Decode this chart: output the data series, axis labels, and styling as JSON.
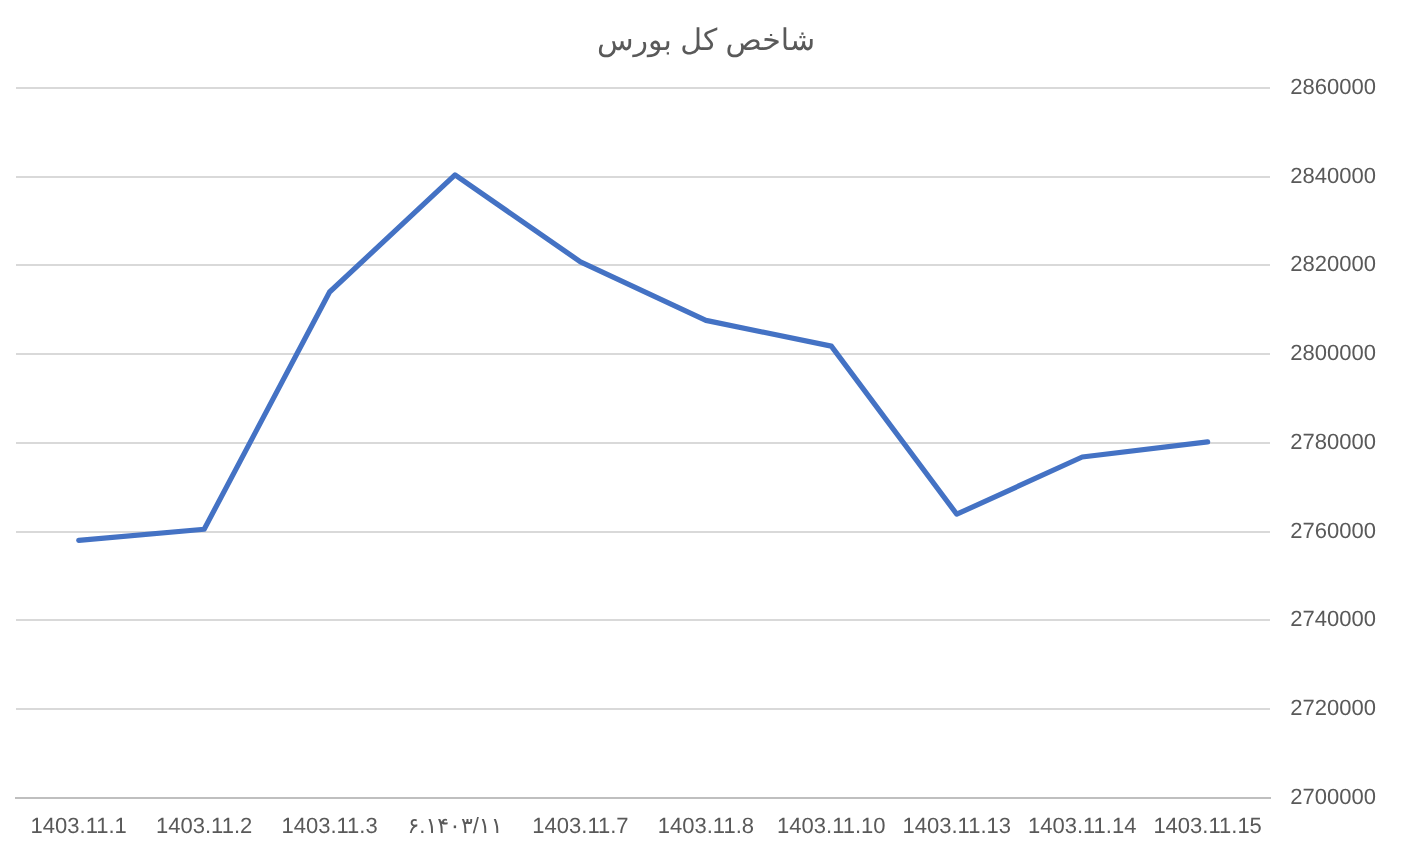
{
  "chart_data": {
    "type": "line",
    "title": "شاخص کل بورس",
    "categories": [
      "1403.11.1",
      "1403.11.2",
      "1403.11.3",
      "۶.۱۴۰۳/۱۱",
      "1403.11.7",
      "1403.11.8",
      "1403.11.10",
      "1403.11.13",
      "1403.11.14",
      "1403.11.15"
    ],
    "values": [
      2758000,
      2760500,
      2814000,
      2840400,
      2820800,
      2807600,
      2801800,
      2763900,
      2776800,
      2780200
    ],
    "color": "#4472c4",
    "ylim": [
      2700000,
      2860000
    ],
    "yticks": [
      2700000,
      2720000,
      2740000,
      2760000,
      2780000,
      2800000,
      2820000,
      2840000,
      2860000
    ],
    "grid": "y",
    "legend": false,
    "marker": "none",
    "line_style": "solid"
  }
}
